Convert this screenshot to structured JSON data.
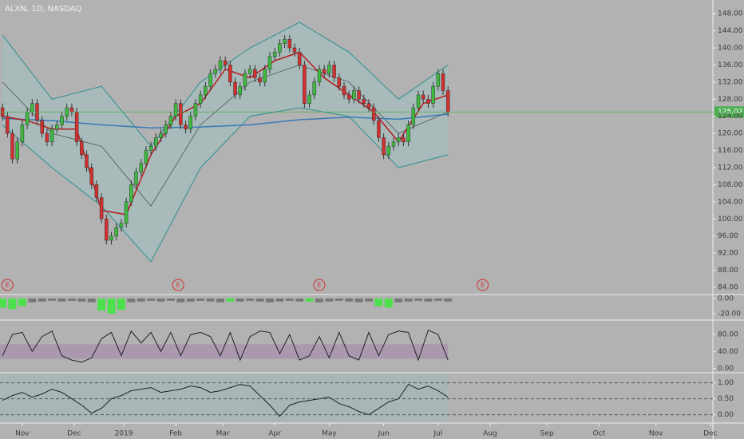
{
  "chart_data": [
    {
      "type": "candlestick",
      "title": "ALXN, 1D, NASDAQ",
      "xlim": [
        -9,
        279
      ],
      "xticks": [
        {
          "value": 0,
          "label": "Nov"
        },
        {
          "value": 21,
          "label": "Dec"
        },
        {
          "value": 41,
          "label": "2019"
        },
        {
          "value": 62,
          "label": "Feb"
        },
        {
          "value": 81,
          "label": "Mar"
        },
        {
          "value": 102,
          "label": "Apr"
        },
        {
          "value": 124,
          "label": "May"
        },
        {
          "value": 146,
          "label": "Jun"
        },
        {
          "value": 168,
          "label": "Jul"
        },
        {
          "value": 189,
          "label": "Aug"
        },
        {
          "value": 212,
          "label": "Sep"
        },
        {
          "value": 233,
          "label": "Oct"
        },
        {
          "value": 256,
          "label": "Nov"
        },
        {
          "value": 278,
          "label": "Dec"
        }
      ],
      "ylim": [
        82.5,
        151.2
      ],
      "yticks": [
        {
          "value": 84,
          "label": "84.00"
        },
        {
          "value": 88,
          "label": "88.00"
        },
        {
          "value": 92,
          "label": "92.00"
        },
        {
          "value": 96,
          "label": "96.00"
        },
        {
          "value": 100,
          "label": "100.00"
        },
        {
          "value": 104,
          "label": "104.00"
        },
        {
          "value": 108,
          "label": "108.00"
        },
        {
          "value": 112,
          "label": "112.00"
        },
        {
          "value": 116,
          "label": "116.00"
        },
        {
          "value": 120,
          "label": "120.00"
        },
        {
          "value": 124,
          "label": "124.00"
        },
        {
          "value": 128,
          "label": "128.00"
        },
        {
          "value": 132,
          "label": "132.00"
        },
        {
          "value": 136,
          "label": "136.00"
        },
        {
          "value": 140,
          "label": "140.00"
        },
        {
          "value": 144,
          "label": "144.00"
        },
        {
          "value": 148,
          "label": "148.00"
        }
      ],
      "up_color": "#3dbb3d",
      "down_color": "#d32f2f",
      "x": [
        -8,
        -6,
        -4,
        -2,
        0,
        2,
        4,
        6,
        8,
        10,
        12,
        14,
        16,
        18,
        20,
        22,
        24,
        26,
        28,
        30,
        32,
        34,
        36,
        38,
        40,
        42,
        44,
        46,
        48,
        50,
        52,
        54,
        56,
        58,
        60,
        62,
        64,
        66,
        68,
        70,
        72,
        74,
        76,
        78,
        80,
        82,
        84,
        86,
        88,
        90,
        92,
        94,
        96,
        98,
        100,
        102,
        104,
        106,
        108,
        110,
        112,
        114,
        116,
        118,
        120,
        122,
        124,
        126,
        128,
        130,
        132,
        134,
        136,
        138,
        140,
        142,
        144,
        146,
        148,
        150,
        152,
        154,
        156,
        158,
        160,
        162,
        164,
        166,
        168,
        170,
        172
      ],
      "open": [
        126,
        124,
        120,
        114,
        118,
        122,
        125,
        127,
        123,
        120,
        118,
        121,
        122,
        124,
        126,
        125,
        118,
        115,
        112,
        108,
        105,
        100,
        95,
        96,
        98,
        99,
        104,
        108,
        111,
        113,
        116,
        117,
        119,
        120,
        122,
        124,
        127,
        122,
        121,
        124,
        127,
        129,
        131,
        134,
        135,
        137,
        136,
        132,
        129,
        131,
        134,
        135,
        133,
        132,
        135,
        138,
        139,
        141,
        142,
        140,
        139,
        136,
        127,
        129,
        132,
        135,
        134,
        136,
        133,
        131,
        129,
        128,
        130,
        128,
        127,
        126,
        123,
        119,
        115,
        117,
        118,
        119,
        118,
        122,
        126,
        129,
        128,
        127,
        131,
        134,
        130
      ],
      "high": [
        127,
        125,
        121,
        119,
        123,
        126,
        128,
        128,
        124,
        121,
        122,
        123,
        125,
        127,
        127,
        126,
        119,
        116,
        113,
        109,
        106,
        101,
        97,
        99,
        100,
        105,
        109,
        112,
        114,
        117,
        118,
        120,
        121,
        123,
        125,
        128,
        128,
        123,
        125,
        128,
        130,
        132,
        135,
        136,
        138,
        138,
        137,
        133,
        132,
        135,
        136,
        136,
        134,
        136,
        139,
        140,
        142,
        143,
        143,
        141,
        140,
        137,
        130,
        133,
        136,
        136,
        137,
        137,
        134,
        132,
        130,
        131,
        131,
        129,
        128,
        127,
        124,
        120,
        118,
        119,
        120,
        120,
        123,
        127,
        130,
        130,
        129,
        132,
        135,
        135,
        131
      ],
      "low": [
        123,
        119,
        113,
        113,
        117,
        121,
        124,
        122,
        119,
        117,
        117,
        120,
        121,
        123,
        124,
        117,
        114,
        111,
        107,
        104,
        99,
        94,
        94,
        95,
        97,
        98,
        103,
        107,
        110,
        112,
        115,
        116,
        118,
        119,
        121,
        123,
        121,
        120,
        120,
        123,
        126,
        128,
        130,
        133,
        134,
        135,
        131,
        128,
        128,
        130,
        133,
        132,
        131,
        131,
        134,
        137,
        138,
        140,
        139,
        138,
        135,
        126,
        126,
        128,
        131,
        133,
        133,
        132,
        130,
        128,
        127,
        127,
        127,
        126,
        125,
        122,
        118,
        114,
        114,
        116,
        117,
        117,
        117,
        121,
        125,
        127,
        126,
        126,
        130,
        129,
        124
      ],
      "close": [
        124,
        120,
        114,
        118,
        122,
        125,
        127,
        123,
        120,
        118,
        121,
        122,
        124,
        126,
        125,
        118,
        115,
        112,
        108,
        105,
        100,
        95,
        96,
        98,
        99,
        104,
        108,
        111,
        113,
        116,
        117,
        119,
        120,
        122,
        124,
        127,
        122,
        121,
        124,
        127,
        129,
        131,
        134,
        135,
        137,
        136,
        132,
        129,
        131,
        134,
        135,
        133,
        132,
        135,
        138,
        139,
        141,
        142,
        140,
        139,
        136,
        127,
        129,
        132,
        135,
        134,
        136,
        133,
        131,
        129,
        128,
        130,
        128,
        127,
        126,
        123,
        119,
        115,
        117,
        118,
        119,
        118,
        122,
        126,
        129,
        128,
        127,
        131,
        134,
        130,
        125
      ],
      "bands": {
        "color": "#2f8f8f",
        "fill": "rgba(150,200,200,0.35)",
        "middle_color": "#555555",
        "x": [
          -8,
          12,
          32,
          52,
          72,
          92,
          112,
          132,
          152,
          172
        ],
        "upper": [
          143,
          128,
          131,
          117,
          132,
          140,
          146,
          139,
          128,
          136
        ],
        "middle": [
          132,
          120,
          117,
          103,
          122,
          132,
          136,
          132,
          120,
          125
        ],
        "lower": [
          122,
          112,
          103,
          90,
          112,
          124,
          126,
          124,
          112,
          115
        ]
      },
      "overlays": [
        {
          "color": "#3a7ab8",
          "x": [
            -8,
            12,
            32,
            52,
            72,
            92,
            112,
            132,
            152,
            172
          ],
          "values": [
            123.5,
            123,
            122,
            121.3,
            121.5,
            122,
            123.2,
            123.8,
            123.3,
            124.5
          ]
        },
        {
          "color": "#b71c1c",
          "x": [
            -8,
            2,
            12,
            22,
            32,
            42,
            52,
            62,
            72,
            82,
            92,
            102,
            112,
            122,
            132,
            142,
            152,
            162,
            172
          ],
          "values": [
            124,
            123,
            121,
            121,
            102,
            101,
            115,
            124,
            127,
            135,
            133,
            137,
            139,
            133,
            129,
            125,
            118,
            127,
            129
          ]
        }
      ],
      "last_price": 125.02,
      "last_color": "#4caf50",
      "events": [
        {
          "x": -6,
          "label": "E"
        },
        {
          "x": 63,
          "label": "E"
        },
        {
          "x": 120,
          "label": "E"
        },
        {
          "x": 186,
          "label": "E"
        }
      ],
      "event_color": "#d32f2f"
    },
    {
      "type": "bar",
      "ylim": [
        -27.4,
        4.2
      ],
      "yticks": [
        {
          "value": 0,
          "label": "0.00"
        },
        {
          "value": -20,
          "label": "-20.00"
        }
      ],
      "x": [
        -8,
        -4,
        0,
        4,
        8,
        12,
        16,
        20,
        24,
        28,
        32,
        36,
        40,
        44,
        48,
        52,
        56,
        60,
        64,
        68,
        72,
        76,
        80,
        84,
        88,
        92,
        96,
        100,
        104,
        108,
        112,
        116,
        120,
        124,
        128,
        132,
        136,
        140,
        144,
        148,
        152,
        156,
        160,
        164,
        168,
        172
      ],
      "values": [
        -12,
        -14,
        -10,
        -5,
        -4,
        -3,
        -4,
        -3,
        -4,
        -5,
        -16,
        -20,
        -15,
        -5,
        -4,
        -3,
        -4,
        -3,
        -5,
        -4,
        -3,
        -4,
        -5,
        -4,
        -4,
        -3,
        -4,
        -5,
        -4,
        -3,
        -4,
        -4,
        -5,
        -4,
        -3,
        -4,
        -5,
        -4,
        -10,
        -12,
        -5,
        -4,
        -3,
        -4,
        -3,
        -4
      ],
      "colors": [
        "#4ce04c",
        "#4ce04c",
        "#4ce04c",
        "#777777",
        "#777777",
        "#777777",
        "#777777",
        "#777777",
        "#777777",
        "#777777",
        "#4ce04c",
        "#4ce04c",
        "#4ce04c",
        "#777777",
        "#777777",
        "#777777",
        "#777777",
        "#777777",
        "#777777",
        "#777777",
        "#777777",
        "#777777",
        "#777777",
        "#4ce04c",
        "#777777",
        "#777777",
        "#777777",
        "#777777",
        "#777777",
        "#777777",
        "#777777",
        "#4ce04c",
        "#777777",
        "#777777",
        "#777777",
        "#777777",
        "#777777",
        "#777777",
        "#4ce04c",
        "#4ce04c",
        "#777777",
        "#777777",
        "#777777",
        "#777777",
        "#777777",
        "#777777"
      ]
    },
    {
      "type": "line",
      "ylim": [
        -8,
        112
      ],
      "yticks": [
        {
          "value": 0,
          "label": "0.00"
        },
        {
          "value": 40,
          "label": "40.00"
        },
        {
          "value": 80,
          "label": "80.00"
        }
      ],
      "band": [
        23,
        57
      ],
      "band_color": "rgba(160,120,170,0.45)",
      "color": "#222222",
      "x": [
        -8,
        -4,
        0,
        4,
        8,
        12,
        16,
        20,
        24,
        28,
        32,
        36,
        40,
        44,
        48,
        52,
        56,
        60,
        64,
        68,
        72,
        76,
        80,
        84,
        88,
        92,
        96,
        100,
        104,
        108,
        112,
        116,
        120,
        124,
        128,
        132,
        136,
        140,
        144,
        148,
        152,
        156,
        160,
        164,
        168,
        172
      ],
      "values": [
        30,
        80,
        85,
        40,
        75,
        88,
        30,
        20,
        15,
        25,
        70,
        85,
        30,
        88,
        60,
        85,
        40,
        85,
        30,
        80,
        85,
        75,
        30,
        85,
        20,
        75,
        88,
        85,
        35,
        80,
        20,
        30,
        75,
        25,
        85,
        30,
        20,
        85,
        30,
        80,
        88,
        85,
        20,
        90,
        80,
        20
      ]
    },
    {
      "type": "line",
      "ylim": [
        -0.21,
        1.29
      ],
      "yticks": [
        {
          "value": 0,
          "label": "0.00"
        },
        {
          "value": 0.5,
          "label": "0.50"
        },
        {
          "value": 1,
          "label": "1.00"
        }
      ],
      "fill_color": "rgba(150,190,190,0.35)",
      "color": "#222222",
      "grid": true,
      "x": [
        -8,
        -4,
        0,
        4,
        8,
        12,
        16,
        20,
        24,
        28,
        32,
        36,
        40,
        44,
        48,
        52,
        56,
        60,
        64,
        68,
        72,
        76,
        80,
        84,
        88,
        92,
        96,
        100,
        104,
        108,
        112,
        116,
        120,
        124,
        128,
        132,
        136,
        140,
        144,
        148,
        152,
        156,
        160,
        164,
        168,
        172
      ],
      "values": [
        0.45,
        0.6,
        0.7,
        0.55,
        0.65,
        0.8,
        0.7,
        0.5,
        0.3,
        0.05,
        0.2,
        0.5,
        0.6,
        0.75,
        0.8,
        0.85,
        0.7,
        0.75,
        0.8,
        0.9,
        0.85,
        0.7,
        0.75,
        0.85,
        0.95,
        0.9,
        0.6,
        0.3,
        -0.05,
        0.3,
        0.4,
        0.45,
        0.5,
        0.55,
        0.35,
        0.25,
        0.1,
        0.0,
        0.2,
        0.4,
        0.5,
        0.95,
        0.8,
        0.9,
        0.75,
        0.55
      ]
    }
  ]
}
